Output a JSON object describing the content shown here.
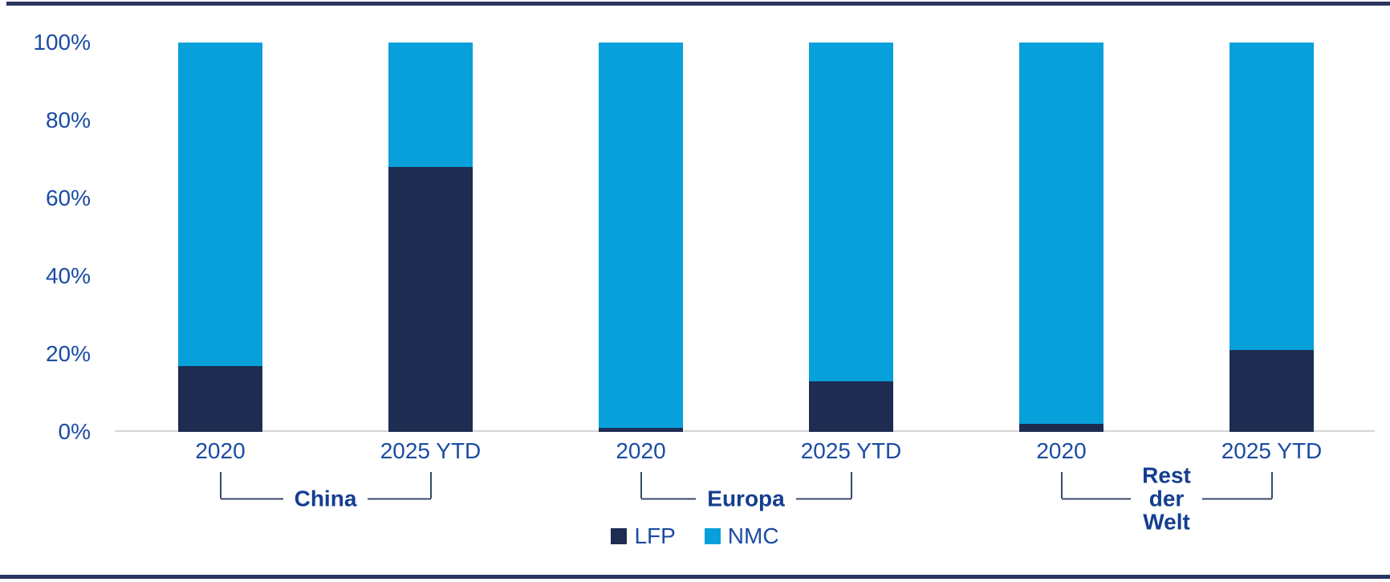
{
  "page": {
    "background": "#FFFFFF"
  },
  "colors": {
    "lfp": "#1E2C52",
    "nmc": "#08A0DB",
    "axis_text": "#1B4CA3",
    "group_label_text": "#143E90",
    "bracket_line": "#3A4A6B",
    "baseline": "#D5D5D5",
    "border": "#2A3560"
  },
  "chart_data": {
    "type": "bar",
    "stacked": true,
    "units": "percent",
    "title": "",
    "xlabel": "",
    "ylabel": "",
    "ylim": [
      0,
      100
    ],
    "grid": false,
    "yticks": [
      "100%",
      "80%",
      "60%",
      "40%",
      "20%",
      "0%"
    ],
    "series_order_bottom_to_top": [
      "LFP",
      "NMC"
    ],
    "groups": [
      {
        "label": "China",
        "label_lines": [
          "China"
        ],
        "bars": [
          {
            "x": "2020",
            "values": [
              {
                "series": "LFP",
                "pct": 17
              },
              {
                "series": "NMC",
                "pct": 83
              }
            ]
          },
          {
            "x": "2025 YTD",
            "values": [
              {
                "series": "LFP",
                "pct": 68
              },
              {
                "series": "NMC",
                "pct": 32
              }
            ]
          }
        ]
      },
      {
        "label": "Europa",
        "label_lines": [
          "Europa"
        ],
        "bars": [
          {
            "x": "2020",
            "values": [
              {
                "series": "LFP",
                "pct": 1
              },
              {
                "series": "NMC",
                "pct": 99
              }
            ]
          },
          {
            "x": "2025 YTD",
            "values": [
              {
                "series": "LFP",
                "pct": 13
              },
              {
                "series": "NMC",
                "pct": 87
              }
            ]
          }
        ]
      },
      {
        "label": "Rest der Welt",
        "label_lines": [
          "Rest",
          "der",
          "Welt"
        ],
        "bars": [
          {
            "x": "2020",
            "values": [
              {
                "series": "LFP",
                "pct": 2
              },
              {
                "series": "NMC",
                "pct": 98
              }
            ]
          },
          {
            "x": "2025 YTD",
            "values": [
              {
                "series": "LFP",
                "pct": 21
              },
              {
                "series": "NMC",
                "pct": 79
              }
            ]
          }
        ]
      }
    ],
    "legend": [
      {
        "name": "LFP",
        "color_key": "lfp"
      },
      {
        "name": "NMC",
        "color_key": "nmc"
      }
    ],
    "legend_position": "bottom-center"
  }
}
